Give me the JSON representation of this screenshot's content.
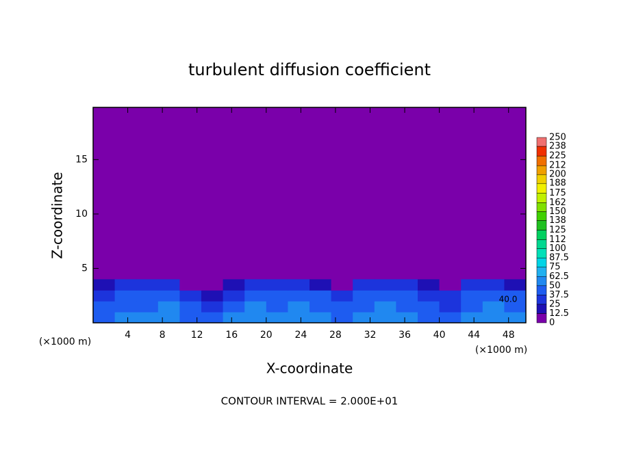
{
  "chart_data": {
    "type": "contour",
    "title": "turbulent diffusion coefficient",
    "x_label": "X-coordinate",
    "y_label": "Z-coordinate",
    "x_unit_labels": [
      "(×1000 m)",
      "(×1000 m)"
    ],
    "footer": "CONTOUR INTERVAL = 2.000E+01",
    "contour_label": "40.0",
    "xlim": [
      0,
      50
    ],
    "ylim": [
      0,
      19.8
    ],
    "xticks": [
      4,
      8,
      12,
      16,
      20,
      24,
      28,
      32,
      36,
      40,
      44,
      48
    ],
    "yticks": [
      5,
      10,
      15
    ],
    "background_color": "#7a00aa",
    "levels": [
      0,
      12.5,
      25,
      37.5,
      50,
      62.5,
      75,
      87.5,
      100,
      112,
      125,
      138,
      150,
      162,
      175,
      188,
      200,
      212,
      225,
      238,
      250
    ],
    "level_colors": [
      "#7a00aa",
      "#1e10b4",
      "#1c34dc",
      "#1e5cf0",
      "#2088f0",
      "#20b0f0",
      "#00d4e6",
      "#00e0b8",
      "#00d890",
      "#00d060",
      "#20c020",
      "#40d000",
      "#80e000",
      "#c0f000",
      "#f0f000",
      "#f0d000",
      "#f0a000",
      "#f07000",
      "#f03000",
      "#f07070"
    ],
    "field": {
      "x_edges": [
        0,
        2.5,
        5,
        7.5,
        10,
        12.5,
        15,
        17.5,
        20,
        22.5,
        25,
        27.5,
        30,
        32.5,
        35,
        37.5,
        40,
        42.5,
        45,
        47.5,
        50
      ],
      "z_edges": [
        0,
        1,
        2,
        3,
        4
      ],
      "values": [
        [
          45,
          55,
          52,
          58,
          48,
          40,
          50,
          56,
          52,
          60,
          54,
          48,
          52,
          58,
          50,
          46,
          44,
          54,
          56,
          50
        ],
        [
          40,
          48,
          44,
          52,
          42,
          30,
          44,
          50,
          46,
          54,
          48,
          40,
          46,
          52,
          44,
          38,
          36,
          48,
          52,
          44
        ],
        [
          36,
          44,
          40,
          46,
          32,
          20,
          36,
          44,
          42,
          46,
          40,
          30,
          38,
          44,
          40,
          30,
          28,
          42,
          46,
          38
        ],
        [
          20,
          30,
          34,
          28,
          10,
          5,
          18,
          30,
          34,
          30,
          24,
          12,
          26,
          30,
          32,
          18,
          10,
          30,
          28,
          16
        ]
      ]
    }
  }
}
